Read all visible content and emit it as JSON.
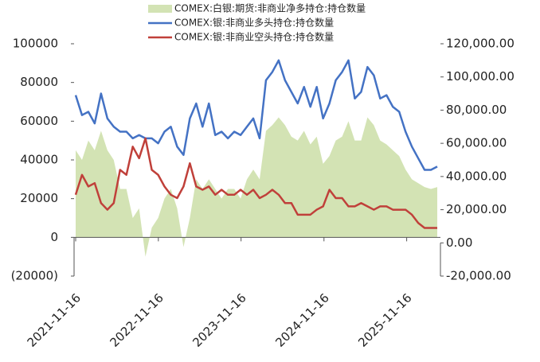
{
  "chart_data": {
    "type": "area_line",
    "x": [
      "2021-11-16",
      "2021-12-14",
      "2022-01-11",
      "2022-02-08",
      "2022-03-08",
      "2022-04-05",
      "2022-05-03",
      "2022-05-31",
      "2022-06-28",
      "2022-07-26",
      "2022-08-23",
      "2022-09-20",
      "2022-10-18",
      "2022-11-15",
      "2022-12-13",
      "2023-01-10",
      "2023-02-07",
      "2023-03-07",
      "2023-04-04",
      "2023-05-02",
      "2023-05-30",
      "2023-06-27",
      "2023-07-25",
      "2023-08-22",
      "2023-09-19",
      "2023-10-17",
      "2023-11-14",
      "2023-12-12",
      "2024-01-09",
      "2024-02-06",
      "2024-03-05",
      "2024-04-02",
      "2024-04-30",
      "2024-05-28",
      "2024-06-25",
      "2024-07-23",
      "2024-08-20",
      "2024-09-17",
      "2024-10-15",
      "2024-11-12",
      "2024-12-10",
      "2025-01-07",
      "2025-02-04",
      "2025-03-04",
      "2025-04-01",
      "2025-04-29",
      "2025-05-27",
      "2025-06-24",
      "2025-07-22",
      "2025-08-19",
      "2025-09-16",
      "2025-10-14",
      "2025-11-11",
      "2025-12-09",
      "2026-01-06",
      "2026-02-03",
      "2026-03-03",
      "2026-03-31"
    ],
    "xlim": [
      "2021-11-16",
      "2026-04-07"
    ],
    "xticks": [
      "2021-11-16",
      "2022-11-16",
      "2023-11-16",
      "2024-11-16",
      "2025-11-16"
    ],
    "series": [
      {
        "name": "COMEX:白银:期货:非商业净多持仓:持仓数量",
        "kind": "area",
        "axis": "y",
        "color": "#d3e3b4",
        "values": [
          45000,
          40000,
          50000,
          45000,
          55000,
          45000,
          40000,
          25000,
          25000,
          10000,
          15000,
          -10000,
          5000,
          10000,
          20000,
          25000,
          15000,
          -5000,
          10000,
          30000,
          25000,
          30000,
          25000,
          20000,
          25000,
          25000,
          20000,
          30000,
          35000,
          30000,
          55000,
          58000,
          62000,
          58000,
          52000,
          50000,
          55000,
          48000,
          52000,
          38000,
          42000,
          50000,
          52000,
          60000,
          50000,
          50000,
          62000,
          58000,
          50000,
          48000,
          45000,
          42000,
          35000,
          30000,
          28000,
          26000,
          25000,
          26000
        ]
      },
      {
        "name": "COMEX:银:非商业多头持仓:持仓数量",
        "kind": "line",
        "axis": "y2",
        "color": "#4472c4",
        "values": [
          89000,
          77000,
          79000,
          72000,
          90000,
          75000,
          70000,
          67000,
          67000,
          63000,
          65000,
          63000,
          63000,
          60000,
          67000,
          70000,
          58000,
          53000,
          75000,
          84000,
          70000,
          84000,
          65000,
          67000,
          63000,
          67000,
          65000,
          70000,
          75000,
          63000,
          98000,
          103000,
          110000,
          98000,
          91000,
          84000,
          94000,
          82000,
          94000,
          75000,
          84000,
          98000,
          103000,
          110000,
          87000,
          91000,
          106000,
          101000,
          87000,
          89000,
          82000,
          79000,
          67000,
          58000,
          51000,
          44000,
          44000,
          46000
        ]
      },
      {
        "name": "COMEX:银:非商业空头持仓:持仓数量",
        "kind": "line",
        "axis": "y2",
        "color": "#c0403a",
        "values": [
          29000,
          41000,
          34000,
          36000,
          24000,
          20000,
          24000,
          44000,
          41000,
          58000,
          51000,
          63000,
          44000,
          41000,
          34000,
          29000,
          27000,
          34000,
          48000,
          34000,
          32000,
          34000,
          29000,
          32000,
          29000,
          29000,
          32000,
          29000,
          32000,
          27000,
          29000,
          32000,
          29000,
          24000,
          24000,
          17000,
          17000,
          17000,
          20000,
          22000,
          32000,
          27000,
          27000,
          22000,
          22000,
          24000,
          22000,
          20000,
          22000,
          22000,
          20000,
          20000,
          20000,
          17000,
          12000,
          9000,
          9000,
          9000
        ]
      }
    ],
    "ylim": [
      -20000,
      100000
    ],
    "yticks": [
      {
        "value": -20000,
        "label": "(20000)",
        "color": "#ff0000"
      },
      0,
      20000,
      40000,
      60000,
      80000,
      100000
    ],
    "y2lim": [
      -20000,
      120000
    ],
    "y2ticks": [
      {
        "value": -20000,
        "label": "-20,000.00"
      },
      {
        "value": 0,
        "label": "0.00"
      },
      {
        "value": 20000,
        "label": "20,000.00"
      },
      {
        "value": 40000,
        "label": "40,000.00"
      },
      {
        "value": 60000,
        "label": "60,000.00"
      },
      {
        "value": 80000,
        "label": "80,000.00"
      },
      {
        "value": 100000,
        "label": "100,000.00"
      },
      {
        "value": 120000,
        "label": "120,000.00"
      }
    ],
    "legend": "top"
  }
}
